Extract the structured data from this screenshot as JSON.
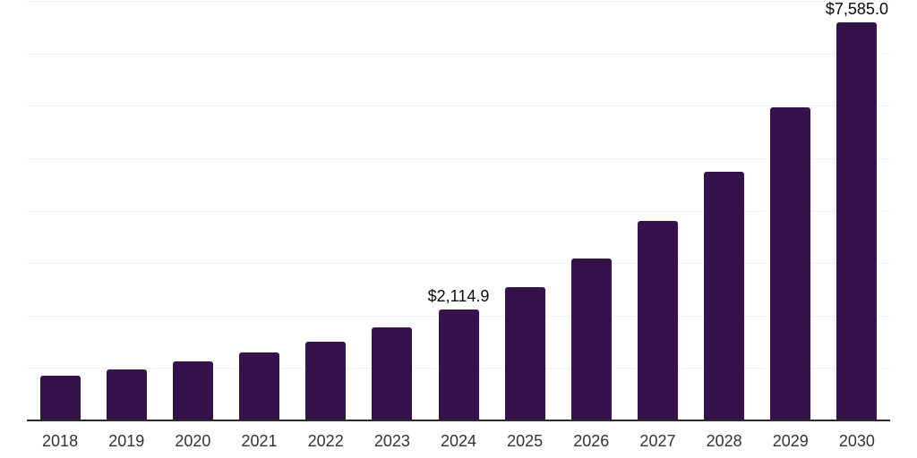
{
  "chart_data": {
    "type": "bar",
    "title": "",
    "xlabel": "",
    "ylabel": "",
    "categories": [
      "2018",
      "2019",
      "2020",
      "2021",
      "2022",
      "2023",
      "2024",
      "2025",
      "2026",
      "2027",
      "2028",
      "2029",
      "2030"
    ],
    "values": [
      845,
      970,
      1118,
      1294,
      1506,
      1772,
      2114.9,
      2540,
      3094,
      3805,
      4734,
      5968,
      7585
    ],
    "data_labels": [
      "",
      "",
      "",
      "",
      "",
      "",
      "$2,114.9",
      "",
      "",
      "",
      "",
      "",
      "$7,585.0"
    ],
    "ylim": [
      0,
      8000
    ],
    "gridline_interval": 1000,
    "grid": true,
    "legend": false,
    "y_axis_labels_visible": false,
    "bar_color": "#36124B"
  },
  "style": {
    "background_color": "#ffffff",
    "axis_line_color": "#2b2b2b",
    "gridline_color": "#f2f2f2",
    "tick_label_color": "#333333",
    "data_label_color": "#0a0a0a"
  }
}
